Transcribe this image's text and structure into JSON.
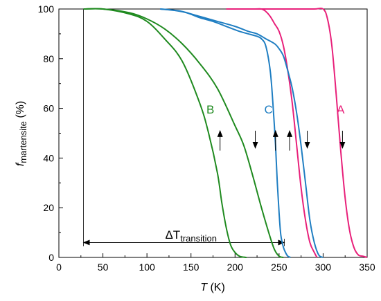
{
  "chart_data": {
    "type": "line",
    "xlabel": {
      "symbol": "T",
      "unit": " (K)"
    },
    "ylabel": {
      "symbol": "f",
      "subscript": "martensite",
      "unit": " (%)"
    },
    "xlim": [
      0,
      350
    ],
    "ylim": [
      0,
      100
    ],
    "xticks": [
      "0",
      "50",
      "100",
      "150",
      "200",
      "250",
      "300",
      "350"
    ],
    "yticks": [
      "0",
      "20",
      "40",
      "60",
      "80",
      "100"
    ],
    "grid": false,
    "colors": {
      "A": "#e8207a",
      "B": "#1f8a1f",
      "C": "#1f7ec2"
    },
    "series": [
      {
        "name": "A",
        "direction": "heating",
        "color": "#e8207a",
        "x": [
          190,
          250,
          270,
          290,
          300,
          305,
          310,
          315,
          320,
          325,
          330,
          335,
          340,
          345,
          350
        ],
        "y": [
          100,
          100,
          100,
          100,
          100,
          96,
          85,
          65,
          43,
          24,
          11,
          4,
          1,
          0.5,
          0
        ]
      },
      {
        "name": "A",
        "direction": "cooling",
        "color": "#e8207a",
        "x": [
          190,
          220,
          230,
          235,
          240,
          245,
          250,
          255,
          260,
          265,
          270,
          275,
          280,
          285,
          290,
          293
        ],
        "y": [
          100,
          100,
          100,
          99,
          97,
          94,
          91,
          85,
          75,
          62,
          45,
          28,
          15,
          6,
          2,
          0
        ]
      },
      {
        "name": "C",
        "direction": "heating",
        "color": "#1f7ec2",
        "x": [
          115,
          130,
          140,
          160,
          180,
          200,
          215,
          225,
          235,
          245,
          250,
          255,
          260,
          265,
          270,
          275,
          280,
          285,
          290,
          295,
          300
        ],
        "y": [
          100,
          99.5,
          99,
          97,
          95,
          93,
          91,
          90,
          88,
          86,
          84,
          81,
          75,
          68,
          58,
          45,
          30,
          15,
          6,
          1,
          0
        ]
      },
      {
        "name": "C",
        "direction": "cooling",
        "color": "#1f7ec2",
        "x": [
          115,
          130,
          145,
          160,
          175,
          190,
          205,
          215,
          225,
          230,
          235,
          240,
          243,
          246,
          248,
          250,
          252,
          255,
          258,
          260,
          263
        ],
        "y": [
          100,
          99.5,
          98.5,
          96.5,
          95,
          93,
          91,
          90,
          89,
          88,
          85,
          75,
          62,
          45,
          30,
          18,
          9,
          4,
          1.5,
          0.5,
          0
        ]
      },
      {
        "name": "B",
        "direction": "heating",
        "color": "#1f8a1f",
        "x": [
          28,
          50,
          80,
          100,
          120,
          140,
          160,
          180,
          200,
          210,
          220,
          230,
          240,
          245,
          250,
          255
        ],
        "y": [
          100,
          100,
          98.5,
          96,
          92,
          86,
          78,
          68,
          53,
          45,
          33,
          20,
          8,
          3,
          0.5,
          0
        ]
      },
      {
        "name": "B",
        "direction": "cooling",
        "color": "#1f8a1f",
        "x": [
          28,
          50,
          80,
          100,
          120,
          140,
          160,
          170,
          180,
          185,
          190,
          195,
          200,
          205,
          210,
          213
        ],
        "y": [
          100,
          100,
          98,
          95,
          88,
          79,
          62,
          50,
          34,
          22,
          12,
          5,
          2,
          0.5,
          0.1,
          0
        ]
      }
    ],
    "annotations": {
      "labels": [
        {
          "text": "A",
          "x": 320,
          "y": 58,
          "color": "#e8207a"
        },
        {
          "text": "C",
          "x": 238,
          "y": 58,
          "color": "#1f7ec2"
        },
        {
          "text": "B",
          "x": 172,
          "y": 58,
          "color": "#1f8a1f"
        }
      ],
      "arrows": [
        {
          "x": 322,
          "y1": 51,
          "y2": 44,
          "color": "#000000"
        },
        {
          "x": 282,
          "y1": 51,
          "y2": 44,
          "color": "#000000"
        },
        {
          "x": 262,
          "y1": 43,
          "y2": 51,
          "color": "#000000"
        },
        {
          "x": 246,
          "y1": 43,
          "y2": 51,
          "color": "#000000"
        },
        {
          "x": 223,
          "y1": 51,
          "y2": 44,
          "color": "#000000"
        },
        {
          "x": 183,
          "y1": 43,
          "y2": 51,
          "color": "#000000"
        }
      ],
      "delta_label": {
        "symbol": "ΔT",
        "subscript": "transition",
        "x": 150,
        "y": 7.5
      },
      "delta_arrow": {
        "x1": 28,
        "x2": 256,
        "y": 6
      },
      "vline": {
        "x": 28,
        "y1": 4.5,
        "y2": 100
      },
      "vline_right": {
        "x": 256,
        "y1": 4.5,
        "y2": 7.5
      }
    }
  }
}
